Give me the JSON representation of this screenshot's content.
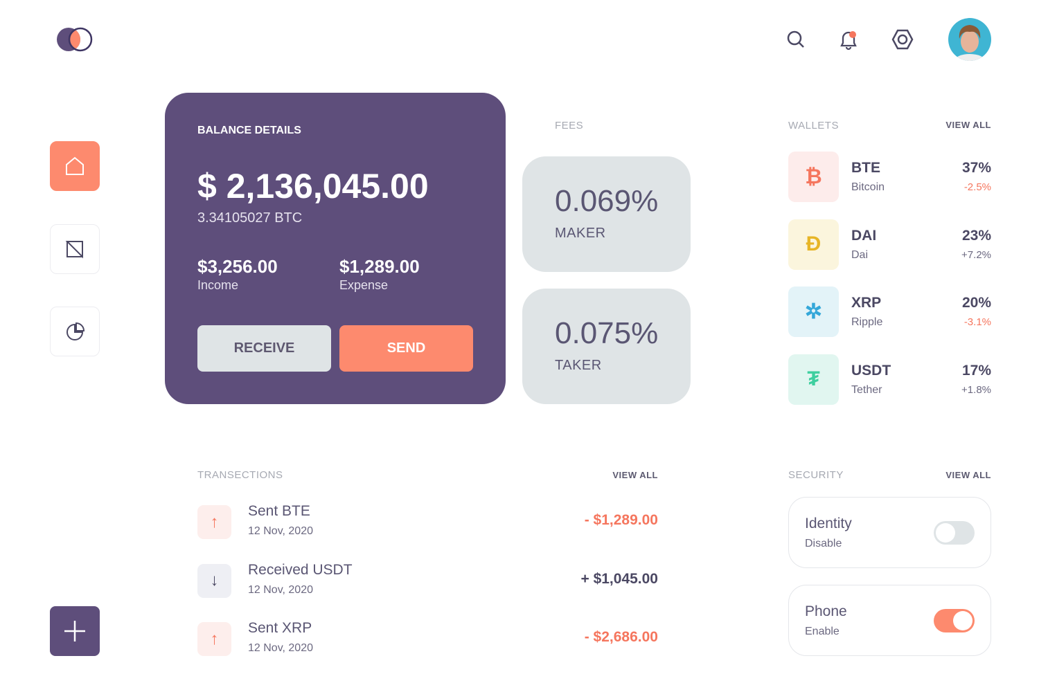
{
  "header": {
    "icons": [
      "search-icon",
      "bell-icon",
      "settings-icon"
    ],
    "notification_dot": true
  },
  "sidebar": {
    "items": [
      {
        "name": "home",
        "icon": "home-icon",
        "active": true
      },
      {
        "name": "exchange",
        "icon": "exchange-icon",
        "active": false
      },
      {
        "name": "analytics",
        "icon": "pie-chart-icon",
        "active": false
      }
    ],
    "add_icon": "plus-icon"
  },
  "balance": {
    "label": "BALANCE DETAILS",
    "amount": "$ 2,136,045.00",
    "btc": "3.34105027 BTC",
    "income_value": "$3,256.00",
    "income_label": "Income",
    "expense_value": "$1,289.00",
    "expense_label": "Expense",
    "receive_label": "RECEIVE",
    "send_label": "SEND"
  },
  "fees": {
    "title": "FEES",
    "maker_value": "0.069%",
    "maker_label": "MAKER",
    "taker_value": "0.075%",
    "taker_label": "TAKER"
  },
  "wallets": {
    "title": "WALLETS",
    "view_all": "VIEW ALL",
    "items": [
      {
        "symbol": "BTE",
        "name": "Bitcoin",
        "percent": "37%",
        "change": "-2.5%",
        "glyph": "₿",
        "color": "#f5765e",
        "bg": "#fdeceb"
      },
      {
        "symbol": "DAI",
        "name": "Dai",
        "percent": "23%",
        "change": "+7.2%",
        "glyph": "Đ",
        "color": "#e7b526",
        "bg": "#fbf5dd"
      },
      {
        "symbol": "XRP",
        "name": "Ripple",
        "percent": "20%",
        "change": "-3.1%",
        "glyph": "✲",
        "color": "#34a7d9",
        "bg": "#e3f3f8"
      },
      {
        "symbol": "USDT",
        "name": "Tether",
        "percent": "17%",
        "change": "+1.8%",
        "glyph": "₮",
        "color": "#3ecf9f",
        "bg": "#e1f6f0"
      }
    ]
  },
  "transactions": {
    "title": "TRANSECTIONS",
    "view_all": "VIEW ALL",
    "items": [
      {
        "title": "Sent BTE",
        "date": "12 Nov, 2020",
        "amount": "- $1,289.00",
        "direction": "up"
      },
      {
        "title": "Received USDT",
        "date": "12 Nov, 2020",
        "amount": "+ $1,045.00",
        "direction": "down"
      },
      {
        "title": "Sent XRP",
        "date": "12 Nov, 2020",
        "amount": "- $2,686.00",
        "direction": "up"
      }
    ]
  },
  "security": {
    "title": "SECURITY",
    "view_all": "VIEW ALL",
    "items": [
      {
        "title": "Identity",
        "status": "Disable",
        "enabled": false
      },
      {
        "title": "Phone",
        "status": "Enable",
        "enabled": true
      }
    ]
  },
  "colors": {
    "primary": "#5e4e7b",
    "accent": "#fd8a6e",
    "negative": "#f5765e"
  }
}
